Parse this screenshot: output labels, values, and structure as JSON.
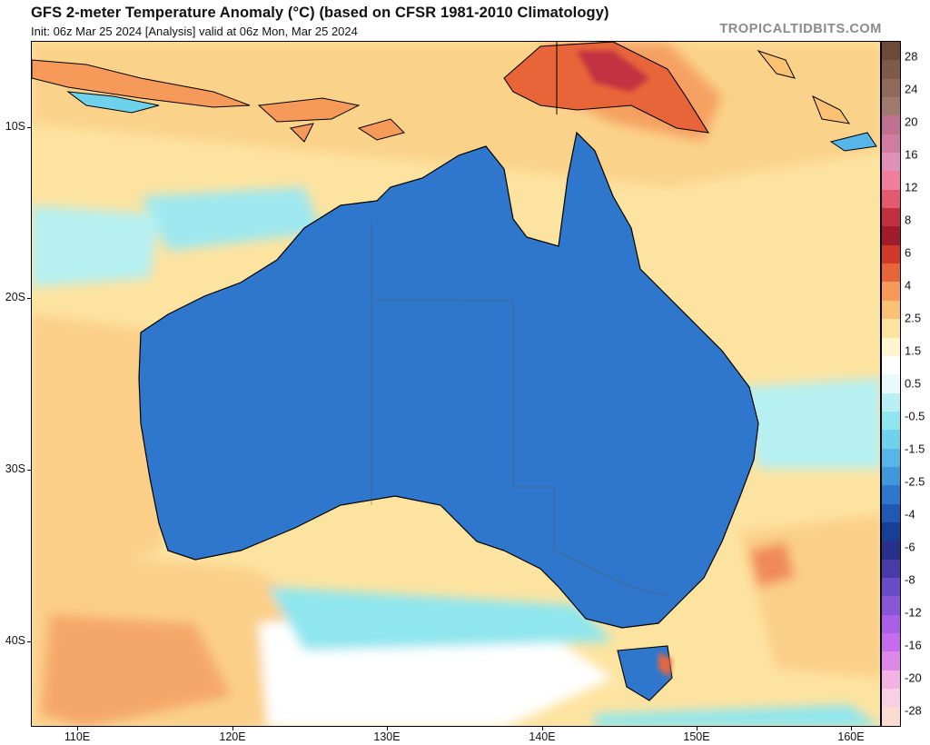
{
  "header": {
    "title": "GFS 2-meter Temperature Anomaly (°C) (based on CFSR 1981-2010 Climatology)",
    "subtitle": "Init: 06z Mar 25 2024   [Analysis]   valid at 06z Mon, Mar 25 2024",
    "watermark": "TROPICALTIDBITS.COM"
  },
  "map": {
    "region": "Australia",
    "latitude_labels": [
      "10S",
      "20S",
      "30S",
      "40S"
    ],
    "longitude_labels": [
      "110E",
      "120E",
      "130E",
      "140E",
      "150E",
      "160E"
    ]
  },
  "colorbar": {
    "labels": [
      "28",
      "24",
      "20",
      "16",
      "12",
      "8",
      "6",
      "4",
      "2.5",
      "1.5",
      "0.5",
      "-0.5",
      "-1.5",
      "-2.5",
      "-4",
      "-6",
      "-8",
      "-12",
      "-16",
      "-20",
      "-28"
    ],
    "colors": [
      "#6b4a3a",
      "#7e5a4a",
      "#8f6a5b",
      "#a07b6d",
      "#c07090",
      "#d07ca3",
      "#e08fb8",
      "#f07d9b",
      "#e35a6e",
      "#c23040",
      "#a01c2a",
      "#d03828",
      "#e8653a",
      "#f59a58",
      "#fbc173",
      "#fde3a0",
      "#fff6d0",
      "#ffffff",
      "#e8fafa",
      "#b6f0f2",
      "#8fe6ee",
      "#6fd2ec",
      "#57b6e8",
      "#3f97dc",
      "#2f77cc",
      "#1f59b3",
      "#173f95",
      "#27308a",
      "#4a3aa8",
      "#6a4cc8",
      "#8a56d8",
      "#a860e6",
      "#c46cec",
      "#dd88e8",
      "#f2b2e4",
      "#f8d0e6",
      "#fcdcd0"
    ]
  }
}
